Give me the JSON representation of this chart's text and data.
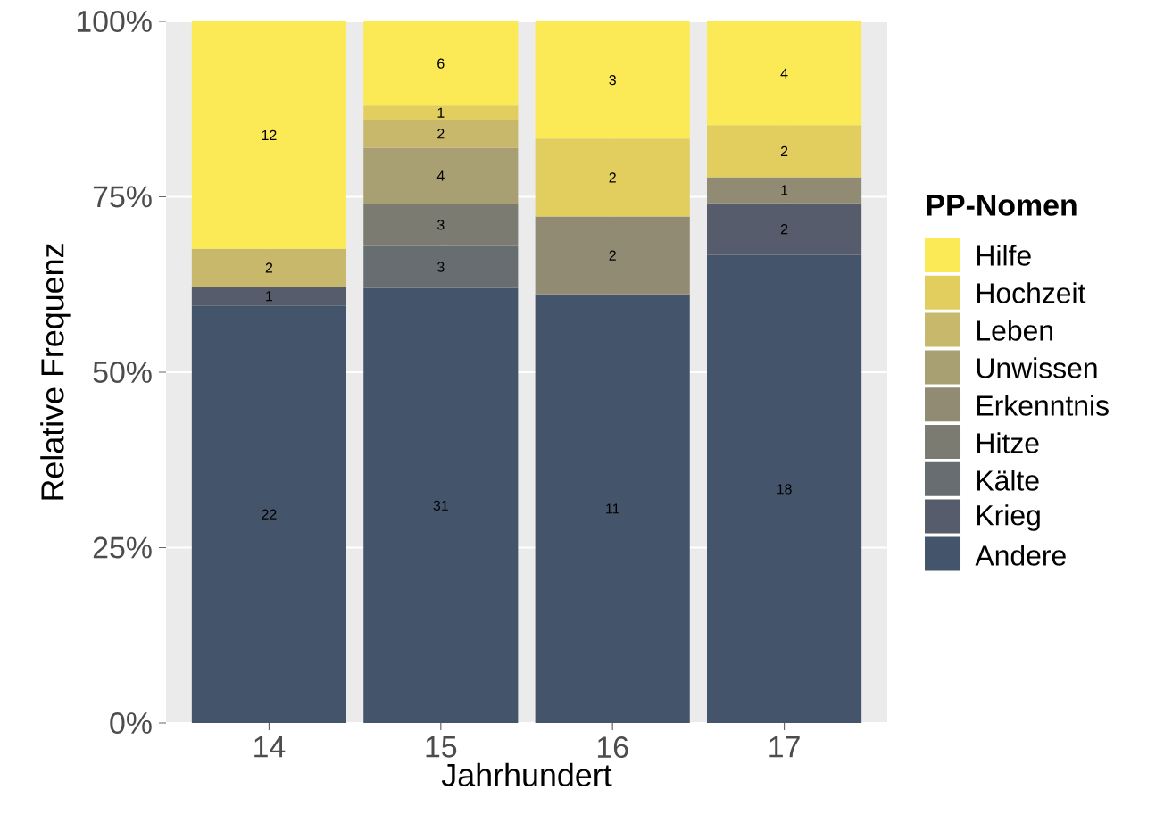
{
  "chart_data": {
    "type": "bar",
    "stacked": true,
    "xlabel": "Jahrhundert",
    "ylabel": "Relative Frequenz",
    "legend_title": "PP-Nomen",
    "categories": [
      "14",
      "15",
      "16",
      "17"
    ],
    "ylim": [
      0,
      100
    ],
    "yticks": [
      {
        "value": 0,
        "label": "0%"
      },
      {
        "value": 25,
        "label": "25%"
      },
      {
        "value": 50,
        "label": "50%"
      },
      {
        "value": 75,
        "label": "75%"
      },
      {
        "value": 100,
        "label": "100%"
      }
    ],
    "grid": true,
    "legend": "right",
    "series": [
      {
        "name": "Andere",
        "color": "#44546b",
        "values": [
          59.5,
          62,
          61.1,
          66.7
        ]
      },
      {
        "name": "Krieg",
        "color": "#565c6b",
        "values": [
          2.7,
          null,
          null,
          7.4
        ]
      },
      {
        "name": "Kälte",
        "color": "#676d70",
        "values": [
          null,
          6,
          null,
          null
        ]
      },
      {
        "name": "Hitze",
        "color": "#7b7b72",
        "values": [
          null,
          6,
          null,
          null
        ]
      },
      {
        "name": "Erkenntnis",
        "color": "#918b73",
        "values": [
          null,
          null,
          11.1,
          3.7
        ]
      },
      {
        "name": "Unwissen",
        "color": "#a89f72",
        "values": [
          null,
          8,
          null,
          null
        ]
      },
      {
        "name": "Leben",
        "color": "#c8b86c",
        "values": [
          5.4,
          4,
          null,
          null
        ]
      },
      {
        "name": "Hochzeit",
        "color": "#e2cd5f",
        "values": [
          null,
          2,
          11.1,
          7.4
        ]
      },
      {
        "name": "Hilfe",
        "color": "#fbe955",
        "values": [
          32.4,
          12,
          16.7,
          14.8
        ]
      }
    ],
    "annotations": [
      "22",
      "1",
      "2",
      "12",
      "31",
      "3",
      "3",
      "4",
      "2",
      "1",
      "6",
      "11",
      "2",
      "2",
      "3",
      "18",
      "2",
      "1",
      "2",
      "4"
    ]
  }
}
